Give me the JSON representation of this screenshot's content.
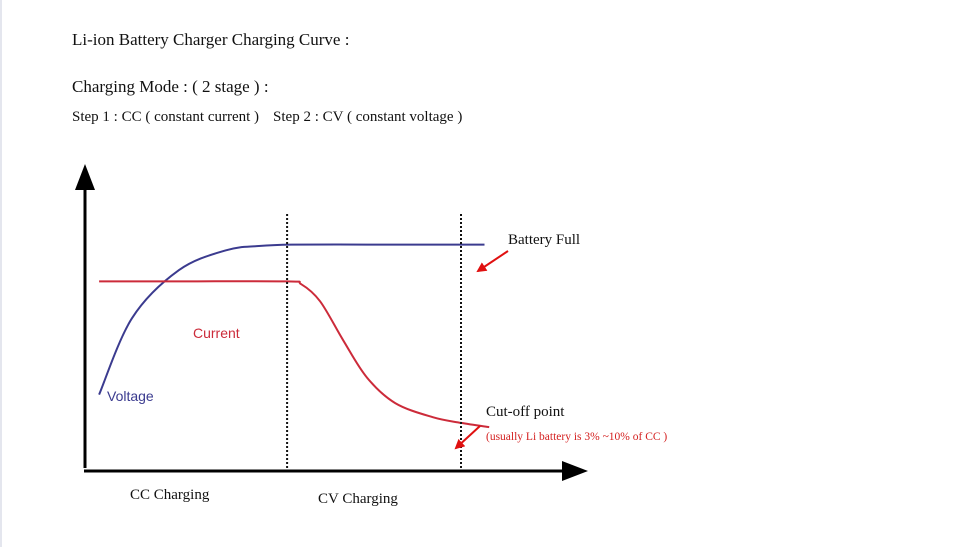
{
  "header": {
    "title": "Li-ion Battery Charger Charging Curve :",
    "mode": "Charging Mode : ( 2 stage ) :",
    "step1": "Step 1 : CC ( constant current )",
    "step2": "Step 2 : CV ( constant voltage )"
  },
  "chart_data": {
    "type": "line",
    "title": "",
    "xlabel": "",
    "ylabel": "",
    "grid": false,
    "xlim": [
      0,
      100
    ],
    "ylim": [
      0,
      100
    ],
    "series": [
      {
        "name": "Voltage",
        "color": "#3b3b8f",
        "points": [
          [
            3,
            27
          ],
          [
            10,
            54
          ],
          [
            20,
            71
          ],
          [
            30,
            78
          ],
          [
            37,
            79.5
          ],
          [
            44,
            80
          ],
          [
            60,
            80
          ],
          [
            75,
            80
          ],
          [
            85,
            80
          ]
        ]
      },
      {
        "name": "Current",
        "color": "#cc2b3a",
        "points": [
          [
            3,
            67
          ],
          [
            20,
            67
          ],
          [
            43,
            67
          ],
          [
            46,
            66
          ],
          [
            50,
            60
          ],
          [
            55,
            46
          ],
          [
            60,
            33
          ],
          [
            66,
            24
          ],
          [
            74,
            19
          ],
          [
            80,
            17
          ],
          [
            86,
            15.5
          ]
        ]
      }
    ],
    "phase_lines": [
      43,
      80
    ],
    "phases": [
      {
        "label": "CC Charging",
        "x_from": 0,
        "x_to": 43
      },
      {
        "label": "CV Charging",
        "x_from": 43,
        "x_to": 80
      }
    ],
    "annotations": {
      "battery_full": "Battery Full",
      "cutoff_point": "Cut-off point",
      "cutoff_note": "(usually Li battery is 3% ~10% of CC )",
      "arrow_color": "#e01010"
    }
  }
}
